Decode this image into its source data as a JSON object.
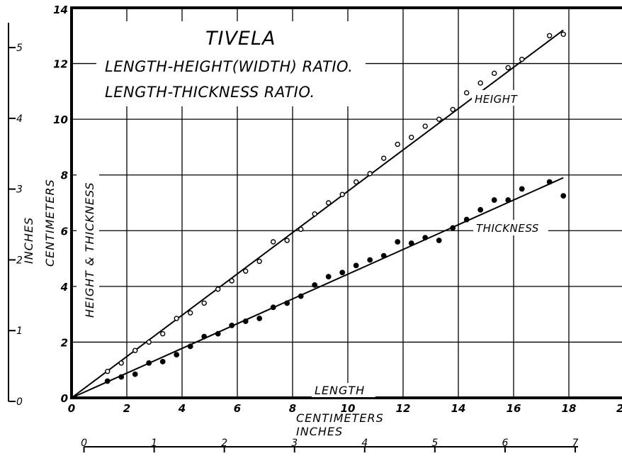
{
  "chart_data": {
    "type": "scatter",
    "title": "TIVELA",
    "subtitles": [
      "LENGTH-HEIGHT(WIDTH) RATIO.",
      "LENGTH-THICKNESS RATIO."
    ],
    "xlabel": "LENGTH",
    "xunit_primary": "CENTIMETERS",
    "xunit_secondary": "INCHES",
    "ylabel": "HEIGHT & THICKNESS",
    "yunit_primary": "CENTIMETERS",
    "yunit_secondary": "INCHES",
    "xlim": [
      0,
      20
    ],
    "ylim": [
      0,
      14
    ],
    "x_ticks": [
      "0",
      "2",
      "4",
      "6",
      "8",
      "10",
      "12",
      "14",
      "16",
      "18",
      "2"
    ],
    "y_ticks": [
      "0",
      "2",
      "4",
      "6",
      "8",
      "10",
      "12",
      "14"
    ],
    "x_inch_ticks": [
      "0",
      "1",
      "2",
      "3",
      "4",
      "5",
      "6",
      "7"
    ],
    "y_inch_ticks": [
      "0",
      "1",
      "2",
      "3",
      "4",
      "5"
    ],
    "grid": true,
    "series": [
      {
        "name": "HEIGHT",
        "marker": "open-circle",
        "points": [
          [
            1.3,
            0.95
          ],
          [
            1.8,
            1.25
          ],
          [
            2.3,
            1.7
          ],
          [
            2.8,
            2.0
          ],
          [
            3.3,
            2.3
          ],
          [
            3.8,
            2.85
          ],
          [
            4.3,
            3.05
          ],
          [
            4.8,
            3.4
          ],
          [
            5.3,
            3.9
          ],
          [
            5.8,
            4.2
          ],
          [
            6.3,
            4.55
          ],
          [
            6.8,
            4.9
          ],
          [
            7.3,
            5.6
          ],
          [
            7.8,
            5.65
          ],
          [
            8.3,
            6.05
          ],
          [
            8.8,
            6.6
          ],
          [
            9.3,
            7.0
          ],
          [
            9.8,
            7.3
          ],
          [
            10.3,
            7.75
          ],
          [
            10.8,
            8.05
          ],
          [
            11.3,
            8.6
          ],
          [
            11.8,
            9.1
          ],
          [
            12.3,
            9.35
          ],
          [
            12.8,
            9.75
          ],
          [
            13.3,
            10.0
          ],
          [
            13.8,
            10.35
          ],
          [
            14.3,
            10.95
          ],
          [
            14.8,
            11.3
          ],
          [
            15.3,
            11.65
          ],
          [
            15.8,
            11.85
          ],
          [
            16.3,
            12.15
          ],
          [
            17.3,
            13.0
          ],
          [
            17.8,
            13.05
          ]
        ],
        "fit_line": [
          [
            0,
            0
          ],
          [
            17.8,
            13.2
          ]
        ]
      },
      {
        "name": "THICKNESS",
        "marker": "filled-circle",
        "points": [
          [
            1.3,
            0.6
          ],
          [
            1.8,
            0.75
          ],
          [
            2.3,
            0.85
          ],
          [
            2.8,
            1.25
          ],
          [
            3.3,
            1.3
          ],
          [
            3.8,
            1.55
          ],
          [
            4.3,
            1.85
          ],
          [
            4.8,
            2.2
          ],
          [
            5.3,
            2.3
          ],
          [
            5.8,
            2.6
          ],
          [
            6.3,
            2.75
          ],
          [
            6.8,
            2.85
          ],
          [
            7.3,
            3.25
          ],
          [
            7.8,
            3.4
          ],
          [
            8.3,
            3.65
          ],
          [
            8.8,
            4.05
          ],
          [
            9.3,
            4.35
          ],
          [
            9.8,
            4.5
          ],
          [
            10.3,
            4.75
          ],
          [
            10.8,
            4.95
          ],
          [
            11.3,
            5.1
          ],
          [
            11.8,
            5.6
          ],
          [
            12.3,
            5.55
          ],
          [
            12.8,
            5.75
          ],
          [
            13.3,
            5.65
          ],
          [
            13.8,
            6.1
          ],
          [
            14.3,
            6.4
          ],
          [
            14.8,
            6.75
          ],
          [
            15.3,
            7.1
          ],
          [
            15.8,
            7.1
          ],
          [
            16.3,
            7.5
          ],
          [
            17.3,
            7.75
          ],
          [
            17.8,
            7.25
          ]
        ],
        "fit_line": [
          [
            0,
            0
          ],
          [
            17.8,
            7.9
          ]
        ]
      }
    ]
  }
}
